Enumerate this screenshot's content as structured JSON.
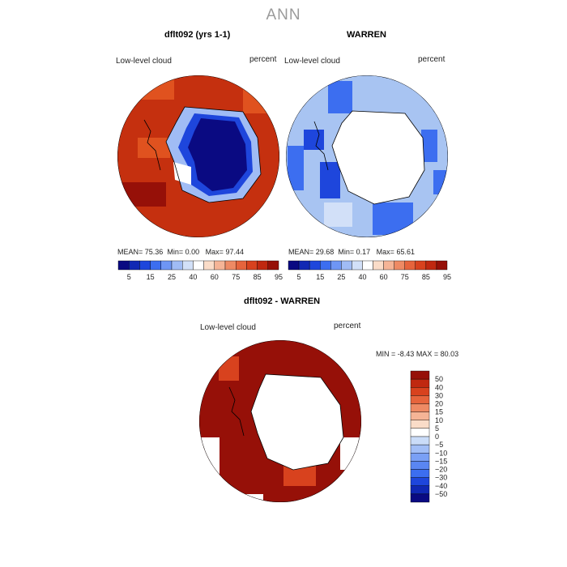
{
  "season": "ANN",
  "panels": [
    {
      "title": "dflt092 (yrs 1-1)",
      "variable": "Low-level cloud",
      "units": "percent",
      "stats": {
        "mean_label": "MEAN=",
        "mean": "75.36",
        "min_label": "Min=",
        "min": "0.00",
        "max_label": "Max=",
        "max": "97.44"
      }
    },
    {
      "title": "WARREN",
      "variable": "Low-level cloud",
      "units": "percent",
      "stats": {
        "mean_label": "MEAN=",
        "mean": "29.68",
        "min_label": "Min=",
        "min": "0.17",
        "max_label": "Max=",
        "max": "65.61"
      }
    },
    {
      "title": "dflt092 - WARREN",
      "variable": "Low-level cloud",
      "units": "percent",
      "stats": {
        "min_label": "MIN =",
        "min": "-8.43",
        "max_label": "MAX =",
        "max": "80.03"
      }
    }
  ],
  "abs_colorbar": {
    "colors": [
      "#0a0a82",
      "#1028b4",
      "#1e46dc",
      "#3c6ef0",
      "#6e96f5",
      "#a0bcf5",
      "#d2e0f8",
      "#ffffff",
      "#fadcc8",
      "#f5b496",
      "#ee8a64",
      "#e6643c",
      "#d8421e",
      "#c02810",
      "#961008"
    ],
    "labels": [
      "5",
      "15",
      "25",
      "40",
      "60",
      "75",
      "85",
      "95"
    ]
  },
  "diff_colorbar": {
    "colors": [
      "#0a0a82",
      "#1028b4",
      "#1e46dc",
      "#3c6ef0",
      "#5a86f2",
      "#7aa0f5",
      "#a2bef6",
      "#cadcf8",
      "#ffffff",
      "#fadcc8",
      "#f5b496",
      "#ee8a64",
      "#e6643c",
      "#d8421e",
      "#c02810",
      "#961008"
    ],
    "labels": [
      "50",
      "40",
      "30",
      "20",
      "15",
      "10",
      "5",
      "0",
      "−5",
      "−10",
      "−15",
      "−20",
      "−30",
      "−40",
      "−50"
    ]
  },
  "map_colors": {
    "model_field": "#c5300f",
    "model_patch": "#e0521f",
    "model_dark": "#961008",
    "model_core": "#0a0a82",
    "model_ring": "#1e46dc",
    "model_light": "#a0bcf5",
    "obs_field": "#a8c4f2",
    "obs_mid": "#3c6ef0",
    "obs_dark": "#1e46dc",
    "obs_pale": "#d2e0f8",
    "diff_field": "#961008",
    "diff_patch": "#d8421e",
    "coast": "#000000"
  }
}
